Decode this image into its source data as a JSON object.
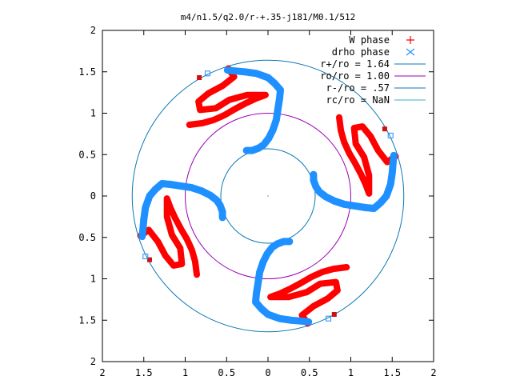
{
  "chart_data": {
    "type": "scatter",
    "title": "m4/n1.5/q2.0/r-+.35-j181/M0.1/512",
    "xlabel": "",
    "ylabel": "",
    "xlim": [
      -2,
      2
    ],
    "ylim": [
      -2,
      2
    ],
    "x_ticks": [
      -2,
      -1.5,
      -1,
      -0.5,
      0,
      0.5,
      1,
      1.5,
      2
    ],
    "y_ticks": [
      -2,
      -1.5,
      -1,
      -0.5,
      0,
      0.5,
      1,
      1.5,
      2
    ],
    "x_tick_labels": [
      "2",
      "1.5",
      "1",
      "0.5",
      "0",
      "0.5",
      "1",
      "1.5",
      "2"
    ],
    "y_tick_labels": [
      "2",
      "1.5",
      "1",
      "0.5",
      "0",
      "0.5",
      "1",
      "1.5",
      "2"
    ],
    "grid": false,
    "legend_position": "top-right",
    "series": [
      {
        "name": "W phase",
        "marker": "+",
        "color": "#ff0000",
        "arm_points": [
          [
            0.86,
            0.95
          ],
          [
            0.88,
            0.79
          ],
          [
            0.92,
            0.65
          ],
          [
            0.98,
            0.52
          ],
          [
            1.05,
            0.4
          ],
          [
            1.12,
            0.27
          ],
          [
            1.18,
            0.14
          ],
          [
            1.22,
            0.03
          ],
          [
            1.22,
            0.25
          ],
          [
            1.16,
            0.47
          ],
          [
            1.06,
            0.63
          ],
          [
            1.04,
            0.82
          ],
          [
            1.14,
            0.84
          ],
          [
            1.24,
            0.72
          ],
          [
            1.33,
            0.55
          ],
          [
            1.44,
            0.41
          ],
          [
            1.54,
            0.48
          ]
        ],
        "key_points": [
          [
            -0.83,
            1.43
          ],
          [
            1.41,
            0.81
          ],
          [
            -1.43,
            -0.77
          ],
          [
            0.8,
            -1.43
          ]
        ]
      },
      {
        "name": "drho phase",
        "marker": "x",
        "color": "#1e90ff",
        "arm_points": [
          [
            0.55,
            0.26
          ],
          [
            0.55,
            0.19
          ],
          [
            0.58,
            0.11
          ],
          [
            0.62,
            0.05
          ],
          [
            0.7,
            -0.01
          ],
          [
            0.8,
            -0.06
          ],
          [
            0.92,
            -0.1
          ],
          [
            1.05,
            -0.12
          ],
          [
            1.18,
            -0.14
          ],
          [
            1.28,
            -0.15
          ],
          [
            1.36,
            -0.08
          ],
          [
            1.43,
            0.0
          ],
          [
            1.48,
            0.14
          ],
          [
            1.5,
            0.28
          ],
          [
            1.51,
            0.4
          ],
          [
            1.52,
            0.49
          ]
        ],
        "key_points": [
          [
            -0.73,
            1.48
          ],
          [
            1.48,
            0.73
          ],
          [
            -1.48,
            -0.73
          ],
          [
            0.73,
            -1.48
          ]
        ]
      },
      {
        "name": "r+/ro = 1.64",
        "type": "circle",
        "radius": 1.64,
        "color": "#0e78b4"
      },
      {
        "name": "ro/ro = 1.00",
        "type": "circle",
        "radius": 1.0,
        "color": "#9b00b4"
      },
      {
        "name": "r-/ro = .57",
        "type": "circle",
        "radius": 0.57,
        "color": "#0e78b4"
      },
      {
        "name": "rc/ro = NaN",
        "type": "circle",
        "radius": null,
        "color": "#38b4c8"
      }
    ]
  }
}
